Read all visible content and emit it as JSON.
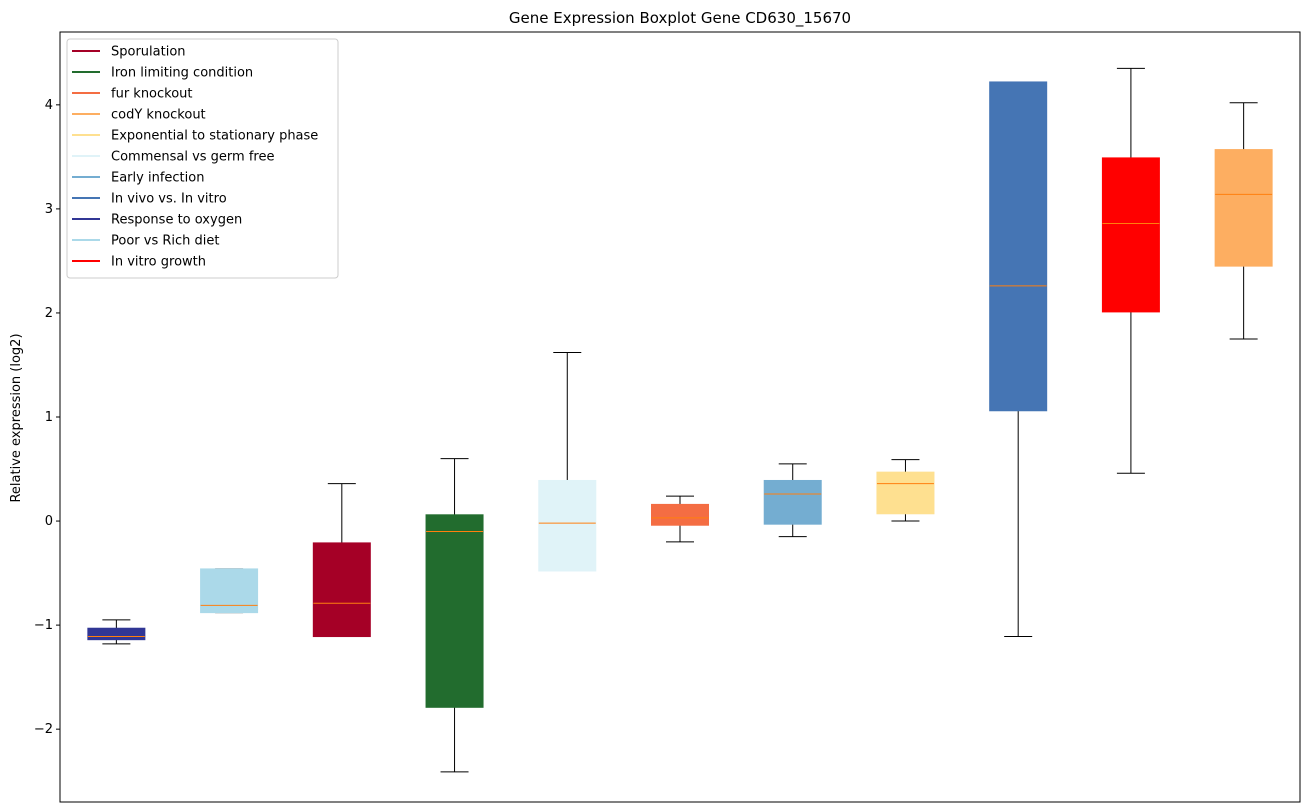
{
  "chart_data": {
    "type": "boxplot",
    "title": "Gene Expression Boxplot Gene CD630_15670",
    "xlabel": "",
    "ylabel": "Relative expression (log2)",
    "ylim": [
      -2.7,
      4.7
    ],
    "yticks": [
      -2,
      -1,
      0,
      1,
      2,
      3,
      4
    ],
    "ytick_labels": [
      "−2",
      "−1",
      "0",
      "1",
      "2",
      "3",
      "4"
    ],
    "grid": false,
    "legend_position": "top-left",
    "legend": [
      {
        "label": "Sporulation",
        "color": "#a50026"
      },
      {
        "label": "Iron limiting condition",
        "color": "#226c2e"
      },
      {
        "label": "fur knockout",
        "color": "#f46d43"
      },
      {
        "label": "codY knockout",
        "color": "#fdae61"
      },
      {
        "label": "Exponential to stationary phase",
        "color": "#fee090"
      },
      {
        "label": "Commensal vs germ free",
        "color": "#e0f3f8"
      },
      {
        "label": "Early infection",
        "color": "#74add1"
      },
      {
        "label": "In vivo vs. In vitro",
        "color": "#4575b4"
      },
      {
        "label": "Response to oxygen",
        "color": "#313695"
      },
      {
        "label": "Poor vs Rich diet",
        "color": "#abd9e9"
      },
      {
        "label": "In vitro growth",
        "color": "#ff0000"
      }
    ],
    "boxes": [
      {
        "name": "Response to oxygen",
        "color": "#313695",
        "whisker_low": -1.18,
        "q1": -1.14,
        "median": -1.11,
        "q3": -1.03,
        "whisker_high": -0.95
      },
      {
        "name": "Poor vs Rich diet",
        "color": "#abd9e9",
        "whisker_low": -0.88,
        "q1": -0.88,
        "median": -0.81,
        "q3": -0.46,
        "whisker_high": -0.46
      },
      {
        "name": "Sporulation",
        "color": "#a50026",
        "whisker_low": -1.11,
        "q1": -1.11,
        "median": -0.79,
        "q3": -0.21,
        "whisker_high": 0.36
      },
      {
        "name": "Iron limiting condition",
        "color": "#226c2e",
        "whisker_low": -2.41,
        "q1": -1.79,
        "median": -0.1,
        "q3": 0.06,
        "whisker_high": 0.6
      },
      {
        "name": "Commensal vs germ free",
        "color": "#e0f3f8",
        "whisker_low": -0.48,
        "q1": -0.48,
        "median": -0.02,
        "q3": 0.39,
        "whisker_high": 1.62
      },
      {
        "name": "fur knockout",
        "color": "#f46d43",
        "whisker_low": -0.2,
        "q1": -0.04,
        "median": 0.03,
        "q3": 0.16,
        "whisker_high": 0.24
      },
      {
        "name": "Early infection",
        "color": "#74add1",
        "whisker_low": -0.15,
        "q1": -0.03,
        "median": 0.26,
        "q3": 0.39,
        "whisker_high": 0.55
      },
      {
        "name": "Exponential to stationary phase",
        "color": "#fee090",
        "whisker_low": 0.0,
        "q1": 0.07,
        "median": 0.36,
        "q3": 0.47,
        "whisker_high": 0.59
      },
      {
        "name": "In vivo vs. In vitro",
        "color": "#4575b4",
        "whisker_low": -1.11,
        "q1": 1.06,
        "median": 2.26,
        "q3": 4.22,
        "whisker_high": 4.22
      },
      {
        "name": "In vitro growth",
        "color": "#ff0000",
        "whisker_low": 0.46,
        "q1": 2.01,
        "median": 2.86,
        "q3": 3.49,
        "whisker_high": 4.35
      },
      {
        "name": "codY knockout",
        "color": "#fdae61",
        "whisker_low": 1.75,
        "q1": 2.45,
        "median": 3.14,
        "q3": 3.57,
        "whisker_high": 4.02
      }
    ],
    "median_color": "#ff7f0e"
  }
}
